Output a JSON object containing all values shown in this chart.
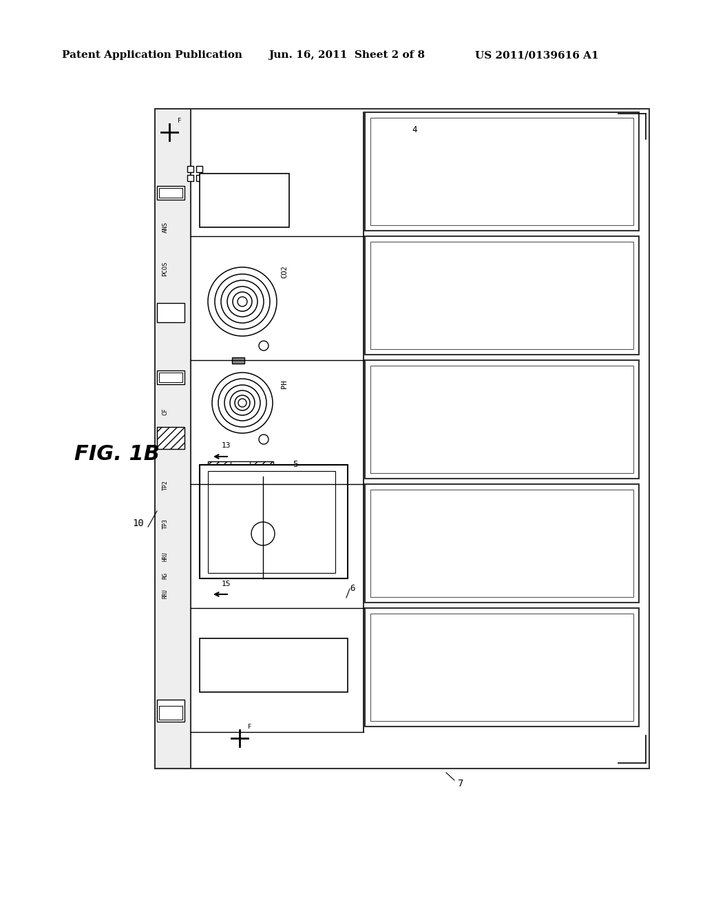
{
  "bg_color": "#ffffff",
  "header_text": "Patent Application Publication",
  "header_date": "Jun. 16, 2011  Sheet 2 of 8",
  "header_patent": "US 2011/0139616 A1",
  "fig_label": "FIG. 1B",
  "label_10": "10",
  "label_13": "13",
  "label_15": "15",
  "label_5": "5",
  "label_6": "6",
  "label_7": "7",
  "label_4": "4",
  "label_PCOS": "PCOS",
  "label_CO2": "CO2",
  "label_PH": "PH",
  "label_TP2": "TP2",
  "label_TP3": "TP3"
}
